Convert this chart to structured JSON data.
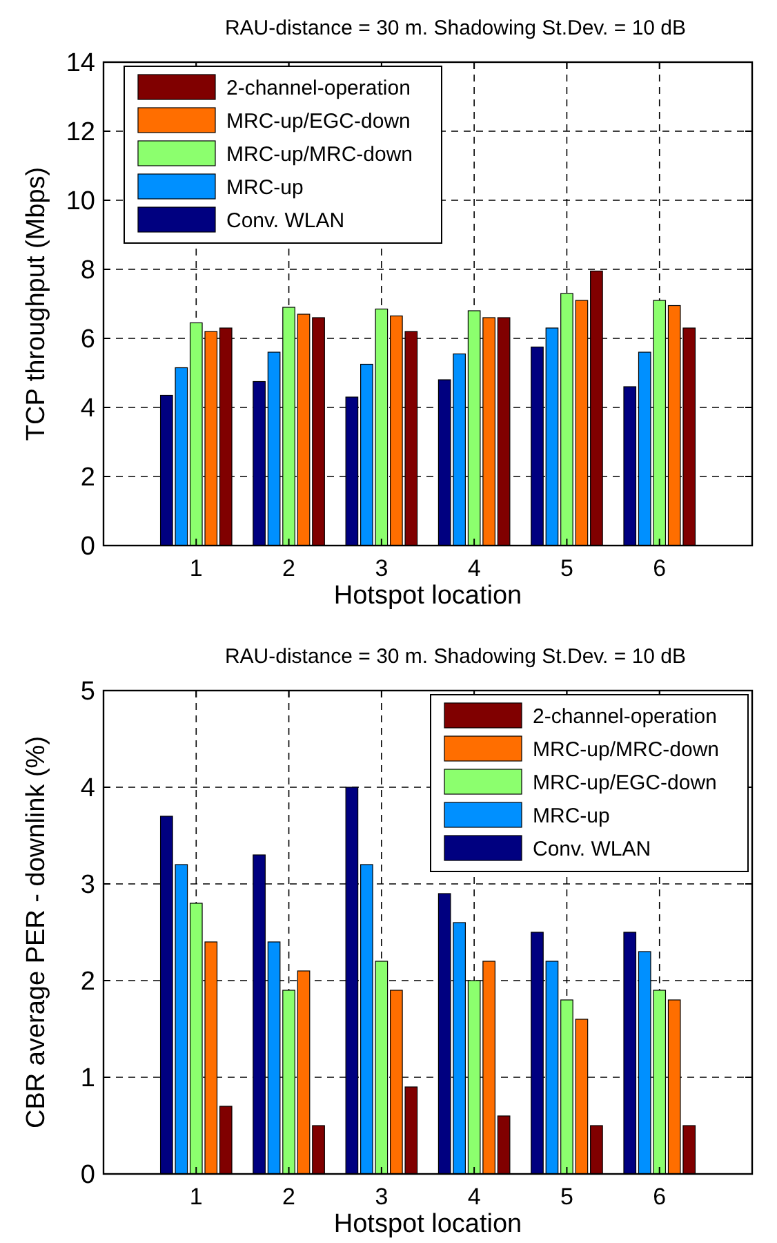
{
  "chart_data": [
    {
      "type": "bar",
      "title": "RAU-distance = 30 m. Shadowing St.Dev. = 10 dB",
      "xlabel": "Hotspot location",
      "ylabel": "TCP throughput (Mbps)",
      "categories": [
        "1",
        "2",
        "3",
        "4",
        "5",
        "6"
      ],
      "ylim": [
        0,
        14
      ],
      "yticks": [
        0,
        2,
        4,
        6,
        8,
        10,
        12,
        14
      ],
      "grid": true,
      "legend": "top left",
      "series": [
        {
          "name": "Conv. WLAN",
          "color": "#000080",
          "values": [
            4.35,
            4.75,
            4.3,
            4.8,
            5.75,
            4.6
          ]
        },
        {
          "name": "MRC-up",
          "color": "#0090ff",
          "values": [
            5.15,
            5.6,
            5.25,
            5.55,
            6.3,
            5.6
          ]
        },
        {
          "name": "MRC-up/MRC-down",
          "color": "#8cff6e",
          "values": [
            6.45,
            6.9,
            6.85,
            6.8,
            7.3,
            7.1
          ]
        },
        {
          "name": "MRC-up/EGC-down",
          "color": "#ff6e00",
          "values": [
            6.2,
            6.7,
            6.65,
            6.6,
            7.1,
            6.95
          ]
        },
        {
          "name": "2-channel-operation",
          "color": "#800000",
          "values": [
            6.3,
            6.6,
            6.2,
            6.6,
            7.95,
            6.3
          ]
        }
      ]
    },
    {
      "type": "bar",
      "title": "RAU-distance = 30 m. Shadowing St.Dev. = 10 dB",
      "xlabel": "Hotspot location",
      "ylabel": "CBR average PER - downlink (%)",
      "categories": [
        "1",
        "2",
        "3",
        "4",
        "5",
        "6"
      ],
      "ylim": [
        0,
        5
      ],
      "yticks": [
        0,
        1,
        2,
        3,
        4,
        5
      ],
      "grid": true,
      "legend": "top right",
      "series": [
        {
          "name": "Conv. WLAN",
          "color": "#000080",
          "values": [
            3.7,
            3.3,
            4.0,
            2.9,
            2.5,
            2.5
          ]
        },
        {
          "name": "MRC-up",
          "color": "#0090ff",
          "values": [
            3.2,
            2.4,
            3.2,
            2.6,
            2.2,
            2.3
          ]
        },
        {
          "name": "MRC-up/EGC-down",
          "color": "#8cff6e",
          "values": [
            2.8,
            1.9,
            2.2,
            2.0,
            1.8,
            1.9
          ]
        },
        {
          "name": "MRC-up/MRC-down",
          "color": "#ff6e00",
          "values": [
            2.4,
            2.1,
            1.9,
            2.2,
            1.6,
            1.8
          ]
        },
        {
          "name": "2-channel-operation",
          "color": "#800000",
          "values": [
            0.7,
            0.5,
            0.9,
            0.6,
            0.5,
            0.5
          ]
        }
      ]
    }
  ]
}
